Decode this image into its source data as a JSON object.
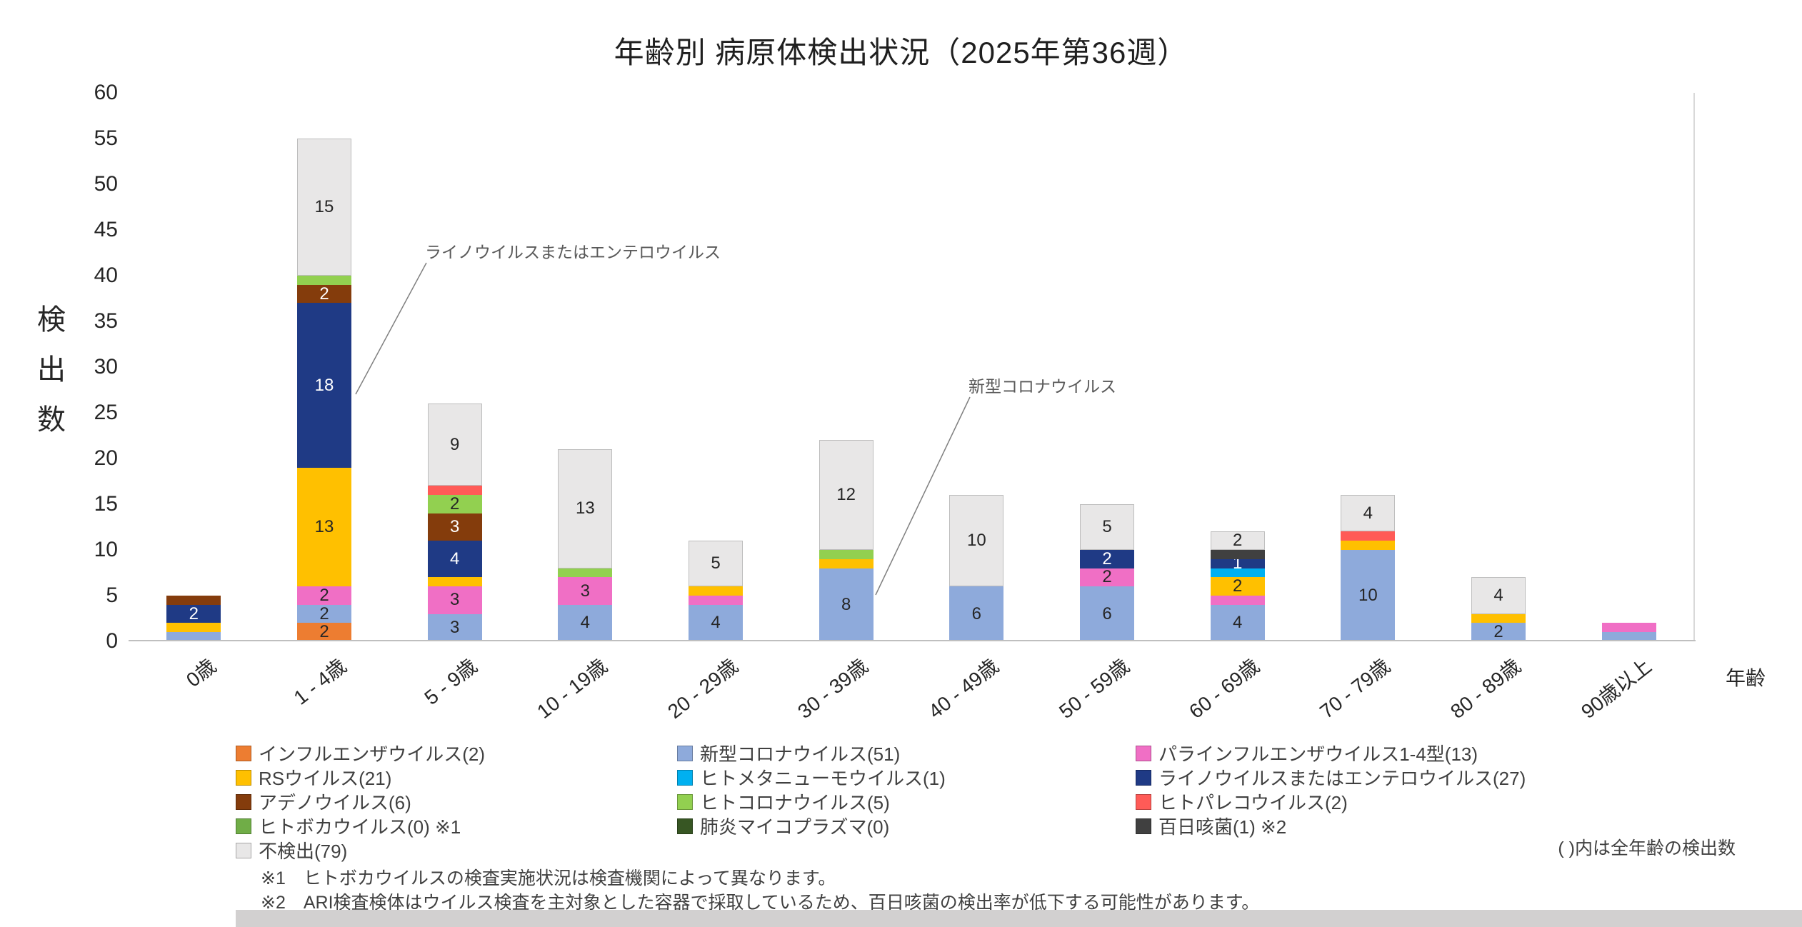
{
  "title": "年齢別 病原体検出状況（2025年第36週）",
  "y_axis_title_chars": [
    "検",
    "出",
    "数"
  ],
  "x_axis": {
    "label": "年齢"
  },
  "chart_data": {
    "type": "bar",
    "stacked": true,
    "title": "年齢別 病原体検出状況（2025年第36週）",
    "xlabel": "年齢",
    "ylabel": "検出数",
    "ylim": [
      0,
      60
    ],
    "ytick_step": 5,
    "grid": false,
    "legend_position": "bottom",
    "categories": [
      "0歳",
      "1 - 4歳",
      "5 - 9歳",
      "10 - 19歳",
      "20 - 29歳",
      "30 - 39歳",
      "40 - 49歳",
      "50 - 59歳",
      "60 - 69歳",
      "70 - 79歳",
      "80 - 89歳",
      "90歳以上"
    ],
    "series": [
      {
        "name": "インフルエンザウイルス",
        "legend_label": "インフルエンザウイルス(2)",
        "total": 2,
        "color": "#ED7D31",
        "label_color": "#262626",
        "values": [
          0,
          2,
          0,
          0,
          0,
          0,
          0,
          0,
          0,
          0,
          0,
          0
        ]
      },
      {
        "name": "新型コロナウイルス",
        "legend_label": "新型コロナウイルス(51)",
        "total": 51,
        "color": "#8EAADB",
        "label_color": "#262626",
        "values": [
          1,
          2,
          3,
          4,
          4,
          8,
          6,
          6,
          4,
          10,
          2,
          1
        ]
      },
      {
        "name": "パラインフルエンザウイルス1-4型",
        "legend_label": "パラインフルエンザウイルス1-4型(13)",
        "total": 13,
        "color": "#F06FC5",
        "label_color": "#262626",
        "values": [
          0,
          2,
          3,
          3,
          1,
          0,
          0,
          2,
          1,
          0,
          0,
          1
        ]
      },
      {
        "name": "RSウイルス",
        "legend_label": "RSウイルス(21)",
        "total": 21,
        "color": "#FFC000",
        "label_color": "#262626",
        "values": [
          1,
          13,
          1,
          0,
          1,
          1,
          0,
          0,
          2,
          1,
          1,
          0
        ]
      },
      {
        "name": "ヒトメタニューモウイルス",
        "legend_label": "ヒトメタニューモウイルス(1)",
        "total": 1,
        "color": "#00B0F0",
        "label_color": "#262626",
        "values": [
          0,
          0,
          0,
          0,
          0,
          0,
          0,
          0,
          1,
          0,
          0,
          0
        ]
      },
      {
        "name": "ライノウイルスまたはエンテロウイルス",
        "legend_label": "ライノウイルスまたはエンテロウイルス(27)",
        "total": 27,
        "color": "#1F3A85",
        "label_color": "#FFFFFF",
        "values": [
          2,
          18,
          4,
          0,
          0,
          0,
          0,
          2,
          1,
          0,
          0,
          0
        ]
      },
      {
        "name": "アデノウイルス",
        "legend_label": "アデノウイルス(6)",
        "total": 6,
        "color": "#843C0C",
        "label_color": "#FFFFFF",
        "values": [
          1,
          2,
          3,
          0,
          0,
          0,
          0,
          0,
          0,
          0,
          0,
          0
        ]
      },
      {
        "name": "ヒトコロナウイルス",
        "legend_label": "ヒトコロナウイルス(5)",
        "total": 5,
        "color": "#92D050",
        "label_color": "#262626",
        "values": [
          0,
          1,
          2,
          1,
          0,
          1,
          0,
          0,
          0,
          0,
          0,
          0
        ]
      },
      {
        "name": "ヒトパレコウイルス",
        "legend_label": "ヒトパレコウイルス(2)",
        "total": 2,
        "color": "#FF5B57",
        "label_color": "#262626",
        "values": [
          0,
          0,
          1,
          0,
          0,
          0,
          0,
          0,
          0,
          1,
          0,
          0
        ]
      },
      {
        "name": "ヒトボカウイルス",
        "legend_label": "ヒトボカウイルス(0) ※1",
        "total": 0,
        "color": "#70AD47",
        "label_color": "#262626",
        "values": [
          0,
          0,
          0,
          0,
          0,
          0,
          0,
          0,
          0,
          0,
          0,
          0
        ]
      },
      {
        "name": "肺炎マイコプラズマ",
        "legend_label": "肺炎マイコプラズマ(0)",
        "total": 0,
        "color": "#375623",
        "label_color": "#FFFFFF",
        "values": [
          0,
          0,
          0,
          0,
          0,
          0,
          0,
          0,
          0,
          0,
          0,
          0
        ]
      },
      {
        "name": "百日咳菌",
        "legend_label": "百日咳菌(1) ※2",
        "total": 1,
        "color": "#404040",
        "label_color": "#FFFFFF",
        "values": [
          0,
          0,
          0,
          0,
          0,
          0,
          0,
          0,
          1,
          0,
          0,
          0
        ]
      },
      {
        "name": "不検出",
        "legend_label": "不検出(79)",
        "total": 79,
        "color": "#E8E7E7",
        "border_color": "#BDBDBD",
        "label_color": "#262626",
        "values": [
          0,
          15,
          9,
          13,
          5,
          12,
          10,
          5,
          2,
          4,
          4,
          0
        ]
      }
    ],
    "bar_totals": [
      5,
      55,
      26,
      21,
      11,
      22,
      16,
      15,
      12,
      16,
      7,
      2
    ],
    "label_rule": "show value if >= 2",
    "label_overrides": [
      {
        "series_index": 5,
        "category_index": 8
      }
    ],
    "annotations": [
      {
        "text": "ライノウイルスまたはエンテロウイルス",
        "points_to": "1 - 4歳"
      },
      {
        "text": "新型コロナウイルス",
        "points_to": "30 - 39歳"
      }
    ]
  },
  "notes": {
    "paren_note": "( )内は全年齢の検出数",
    "footnotes": [
      "※1　ヒトボカウイルスの検査実施状況は検査機関によって異なります。",
      "※2　ARI検査検体はウイルス検査を主対象とした容器で採取しているため、百日咳菌の検出率が低下する可能性があります。"
    ]
  }
}
